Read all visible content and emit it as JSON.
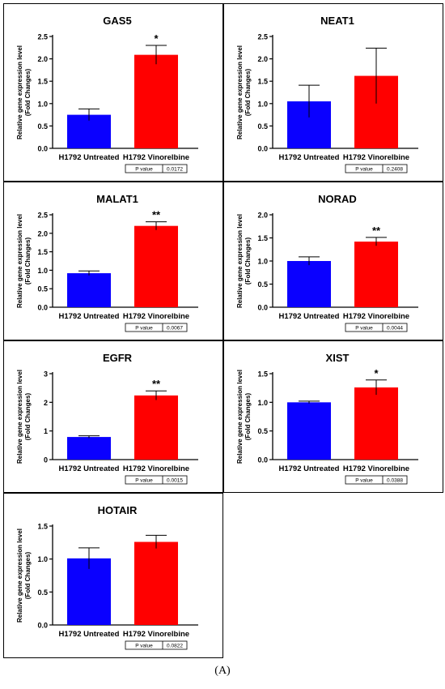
{
  "figure_label": "(A)",
  "colors": {
    "untreated": "#0a00ff",
    "vinorelbine": "#ff0000"
  },
  "common": {
    "ylabel_line1": "Relative gene expression level",
    "ylabel_line2": "(Fold Changes)",
    "pvalue_label": "P value"
  },
  "chart_data": [
    {
      "type": "bar",
      "title": "GAS5",
      "categories": [
        "H1792 Untreated",
        "H1792 Vinorelbine"
      ],
      "values": [
        0.75,
        2.09
      ],
      "errors": [
        0.13,
        0.21
      ],
      "ylim": [
        0,
        2.5
      ],
      "yticks": [
        "0.0",
        "0.5",
        "1.0",
        "1.5",
        "2.0",
        "2.5"
      ],
      "significance": [
        "",
        "*"
      ],
      "p_value": "0.0172",
      "ylabel": "Relative gene expression level (Fold Changes)"
    },
    {
      "type": "bar",
      "title": "NEAT1",
      "categories": [
        "H1792 Untreated",
        "H1792 Vinorelbine"
      ],
      "values": [
        1.05,
        1.62
      ],
      "errors": [
        0.36,
        0.62
      ],
      "ylim": [
        0,
        2.5
      ],
      "yticks": [
        "0.0",
        "0.5",
        "1.0",
        "1.5",
        "2.0",
        "2.5"
      ],
      "significance": [
        "",
        ""
      ],
      "p_value": "0.2408",
      "ylabel": "Relative gene expression level (Fold Changes)"
    },
    {
      "type": "bar",
      "title": "MALAT1",
      "categories": [
        "H1792 Untreated",
        "H1792 Vinorelbine"
      ],
      "values": [
        0.92,
        2.2
      ],
      "errors": [
        0.06,
        0.11
      ],
      "ylim": [
        0,
        2.5
      ],
      "yticks": [
        "0.0",
        "0.5",
        "1.0",
        "1.5",
        "2.0",
        "2.5"
      ],
      "significance": [
        "",
        "**"
      ],
      "p_value": "0.0067",
      "ylabel": "Relative gene expression level (Fold Changes)"
    },
    {
      "type": "bar",
      "title": "NORAD",
      "categories": [
        "H1792 Untreated",
        "H1792 Vinorelbine"
      ],
      "values": [
        1.0,
        1.42
      ],
      "errors": [
        0.09,
        0.09
      ],
      "ylim": [
        0,
        2.0
      ],
      "yticks": [
        "0.0",
        "0.5",
        "1.0",
        "1.5",
        "2.0"
      ],
      "significance": [
        "",
        "**"
      ],
      "p_value": "0.0044",
      "ylabel": "Relative gene expression level (Fold Changes)"
    },
    {
      "type": "bar",
      "title": "EGFR",
      "categories": [
        "H1792 Untreated",
        "H1792 Vinorelbine"
      ],
      "values": [
        0.79,
        2.24
      ],
      "errors": [
        0.04,
        0.16
      ],
      "ylim": [
        0,
        3
      ],
      "yticks": [
        "0",
        "1",
        "2",
        "3"
      ],
      "significance": [
        "",
        "**"
      ],
      "p_value": "0.0015",
      "ylabel": "Relative gene expression level (Fold Changes)"
    },
    {
      "type": "bar",
      "title": "XIST",
      "categories": [
        "H1792 Untreated",
        "H1792 Vinorelbine"
      ],
      "values": [
        1.0,
        1.26
      ],
      "errors": [
        0.02,
        0.13
      ],
      "ylim": [
        0,
        1.5
      ],
      "yticks": [
        "0.0",
        "0.5",
        "1.0",
        "1.5"
      ],
      "significance": [
        "",
        "*"
      ],
      "p_value": "0.0388",
      "ylabel": "Relative gene expression level (Fold Changes)"
    },
    {
      "type": "bar",
      "title": "HOTAIR",
      "categories": [
        "H1792 Untreated",
        "H1792 Vinorelbine"
      ],
      "values": [
        1.01,
        1.26
      ],
      "errors": [
        0.16,
        0.1
      ],
      "ylim": [
        0,
        1.5
      ],
      "yticks": [
        "0.0",
        "0.5",
        "1.0",
        "1.5"
      ],
      "significance": [
        "",
        ""
      ],
      "p_value": "0.0822",
      "ylabel": "Relative gene expression level (Fold Changes)"
    }
  ]
}
